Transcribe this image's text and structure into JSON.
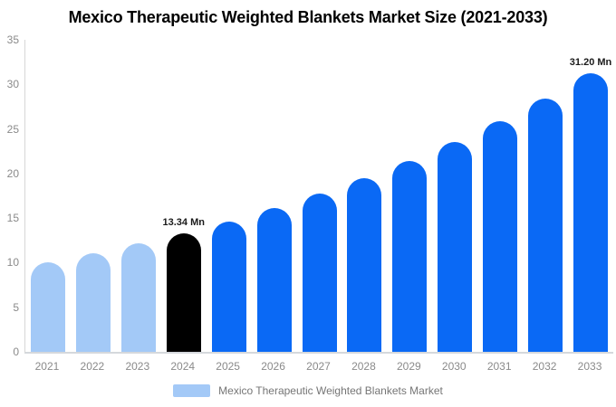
{
  "chart": {
    "title": "Mexico Therapeutic Weighted Blankets Market Size (2021-2033)",
    "legend_label": "Mexico Therapeutic Weighted Blankets Market"
  },
  "chart_data": {
    "type": "bar",
    "title": "Mexico Therapeutic Weighted Blankets Market Size (2021-2033)",
    "categories": [
      "2021",
      "2022",
      "2023",
      "2024",
      "2025",
      "2026",
      "2027",
      "2028",
      "2029",
      "2030",
      "2031",
      "2032",
      "2033"
    ],
    "series": [
      {
        "name": "Mexico Therapeutic Weighted Blankets Market",
        "values": [
          10.0,
          11.1,
          12.2,
          13.34,
          14.66,
          16.12,
          17.72,
          19.48,
          21.41,
          23.53,
          25.87,
          28.43,
          31.2
        ]
      }
    ],
    "unit": "Mn",
    "xlabel": "",
    "ylabel": "",
    "ylim": [
      0,
      35
    ],
    "yticks": [
      0,
      5,
      10,
      15,
      20,
      25,
      30,
      35
    ],
    "grid": false,
    "legend_position": "bottom",
    "annotations": [
      {
        "category": "2024",
        "text": "13.34 Mn"
      },
      {
        "category": "2033",
        "text": "31.20 Mn"
      }
    ],
    "bar_colors": {
      "2021": "#A3C9F7",
      "2022": "#A3C9F7",
      "2023": "#A3C9F7",
      "2024": "#000000",
      "default": "#0A69F5"
    },
    "colors": {
      "light_blue": "#A3C9F7",
      "blue": "#0A69F5",
      "black": "#000000",
      "axis_line": "#D6D6D6",
      "tick_text": "#8A8A8A",
      "annotation_text": "#1A1A1A",
      "legend_text": "#757575"
    }
  }
}
